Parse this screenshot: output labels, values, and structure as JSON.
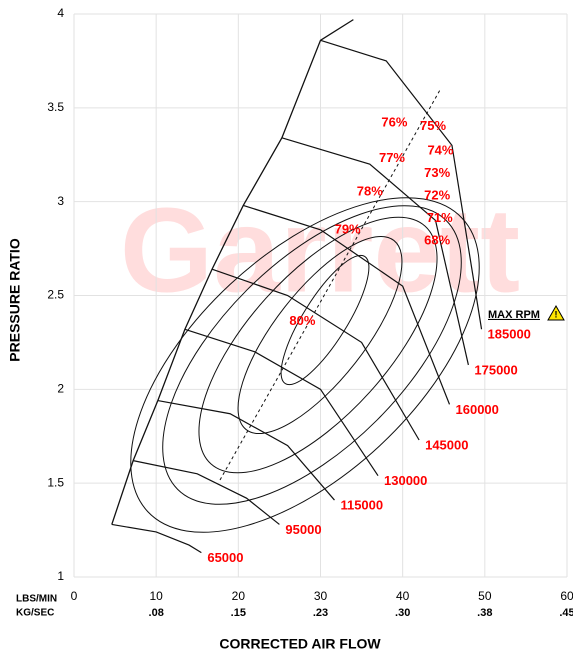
{
  "chart_data": {
    "type": "compressor_map",
    "y_axis_label": "PRESSURE RATIO",
    "x_axis_label": "CORRECTED AIR FLOW",
    "x_unit_label": "LBS/MIN",
    "x2_unit_label": "KG/SEC",
    "watermark": "Garrett",
    "max_rpm_label": "MAX RPM",
    "xlim": [
      0,
      60
    ],
    "xticks": [
      0,
      10,
      20,
      30,
      40,
      50,
      60
    ],
    "x2ticks": [
      {
        "value": 10,
        "label": ".08"
      },
      {
        "value": 20,
        "label": ".15"
      },
      {
        "value": 30,
        "label": ".23"
      },
      {
        "value": 40,
        "label": ".30"
      },
      {
        "value": 50,
        "label": ".38"
      },
      {
        "value": 60,
        "label": ".45"
      }
    ],
    "ylim": [
      1,
      4
    ],
    "yticks": [
      1,
      1.5,
      2,
      2.5,
      3,
      3.5,
      4
    ],
    "grid": true,
    "line_color": "#111111",
    "label_color": "#ff0000",
    "surge_line": {
      "x": [
        4.6,
        7.2,
        10.2,
        13.5,
        16.8,
        20.6,
        25.3,
        30,
        34
      ],
      "y": [
        1.28,
        1.62,
        1.94,
        2.32,
        2.64,
        2.98,
        3.34,
        3.86,
        3.97
      ]
    },
    "series": [
      {
        "name": "65000",
        "x": [
          4.6,
          10,
          14,
          15.5
        ],
        "values": [
          1.28,
          1.24,
          1.17,
          1.13
        ]
      },
      {
        "name": "95000",
        "x": [
          7.2,
          15,
          21,
          25
        ],
        "values": [
          1.62,
          1.55,
          1.42,
          1.28
        ]
      },
      {
        "name": "115000",
        "x": [
          10.2,
          19,
          26,
          31.7
        ],
        "values": [
          1.94,
          1.87,
          1.7,
          1.41
        ]
      },
      {
        "name": "130000",
        "x": [
          13.5,
          22,
          30,
          37
        ],
        "values": [
          2.32,
          2.2,
          2.0,
          1.54
        ]
      },
      {
        "name": "145000",
        "x": [
          16.8,
          26,
          35,
          42
        ],
        "values": [
          2.64,
          2.5,
          2.25,
          1.73
        ]
      },
      {
        "name": "160000",
        "x": [
          20.6,
          30,
          40,
          45.7
        ],
        "values": [
          2.98,
          2.85,
          2.55,
          1.92
        ]
      },
      {
        "name": "175000",
        "x": [
          25.3,
          36,
          44,
          48
        ],
        "values": [
          3.34,
          3.2,
          2.9,
          2.13
        ]
      },
      {
        "name": "185000",
        "x": [
          30,
          38,
          46,
          49.6
        ],
        "values": [
          3.86,
          3.75,
          3.3,
          2.32
        ]
      }
    ],
    "efficiency_labels": [
      {
        "label": "80%",
        "x": 27.8,
        "y": 2.36
      },
      {
        "label": "79%",
        "x": 33.3,
        "y": 2.85
      },
      {
        "label": "78%",
        "x": 36,
        "y": 3.05
      },
      {
        "label": "77%",
        "x": 38.7,
        "y": 3.23
      },
      {
        "label": "76%",
        "x": 39,
        "y": 3.42
      },
      {
        "label": "75%",
        "x": 43.7,
        "y": 3.4
      },
      {
        "label": "74%",
        "x": 44.6,
        "y": 3.27
      },
      {
        "label": "73%",
        "x": 44.2,
        "y": 3.15
      },
      {
        "label": "72%",
        "x": 44.2,
        "y": 3.03
      },
      {
        "label": "71%",
        "x": 44.5,
        "y": 2.91
      },
      {
        "label": "68%",
        "x": 44.2,
        "y": 2.79
      }
    ]
  }
}
